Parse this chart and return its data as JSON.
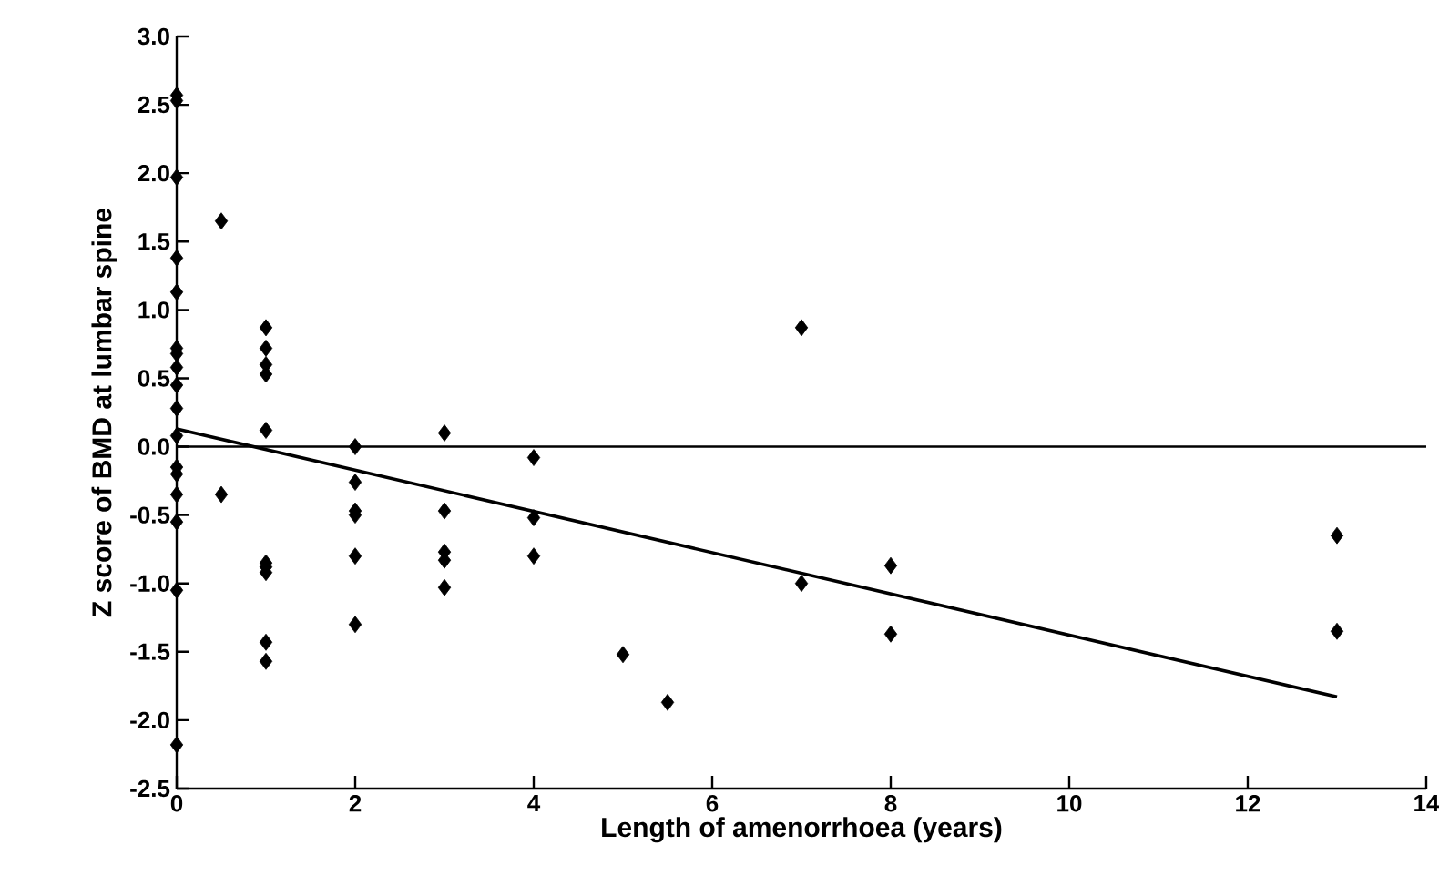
{
  "chart_data": {
    "type": "scatter",
    "xlabel": "Length of amenorrhoea (years)",
    "ylabel": "Z score of BMD at lumbar spine",
    "xlim": [
      0,
      14
    ],
    "ylim": [
      -2.5,
      3.0
    ],
    "xticks": [
      0,
      2,
      4,
      6,
      8,
      10,
      12,
      14
    ],
    "yticks": [
      {
        "value": -2.5,
        "label": "-2.5"
      },
      {
        "value": -2.0,
        "label": "-2.0"
      },
      {
        "value": -1.5,
        "label": "-1.5"
      },
      {
        "value": -1.0,
        "label": "-1.0"
      },
      {
        "value": -0.5,
        "label": "-0.5"
      },
      {
        "value": 0.0,
        "label": "0.0"
      },
      {
        "value": 0.5,
        "label": "0.5"
      },
      {
        "value": 1.0,
        "label": "1.0"
      },
      {
        "value": 1.5,
        "label": "1.5"
      },
      {
        "value": 2.0,
        "label": "2.0"
      },
      {
        "value": 2.5,
        "label": "2.5"
      },
      {
        "value": 3.0,
        "label": "3.0"
      }
    ],
    "grid": false,
    "marker": "diamond",
    "ref_lines": [
      {
        "axis": "y",
        "value": 0,
        "color": "#000000"
      }
    ],
    "series": [
      {
        "color": "#000000",
        "x": [
          0,
          0,
          0,
          0,
          0,
          0,
          0,
          0,
          0,
          0,
          0,
          0,
          0,
          0,
          0,
          0,
          0,
          0.5,
          0.5,
          1,
          1,
          1,
          1,
          1,
          1,
          1,
          1,
          1,
          1,
          2,
          2,
          2,
          2,
          2,
          2,
          3,
          3,
          3,
          3,
          3,
          4,
          4,
          4,
          5,
          5.5,
          7,
          7,
          8,
          8,
          13,
          13
        ],
        "values": [
          2.57,
          2.53,
          1.97,
          1.38,
          1.13,
          0.72,
          0.68,
          0.58,
          0.45,
          0.28,
          0.08,
          -0.15,
          -0.2,
          -0.35,
          -0.55,
          -1.05,
          -2.18,
          1.65,
          -0.35,
          0.87,
          0.72,
          0.6,
          0.53,
          0.12,
          -0.85,
          -0.88,
          -0.92,
          -1.43,
          -1.57,
          0.0,
          -0.26,
          -0.47,
          -0.5,
          -0.8,
          -1.3,
          0.1,
          -0.47,
          -0.77,
          -0.83,
          -1.03,
          -0.08,
          -0.52,
          -0.8,
          -1.52,
          -1.87,
          0.87,
          -1.0,
          -0.87,
          -1.37,
          -0.65,
          -1.35
        ]
      },
      {
        "type": "line",
        "color": "#000000",
        "x": [
          0,
          13
        ],
        "values": [
          0.13,
          -1.83
        ],
        "marker": "none"
      }
    ]
  }
}
